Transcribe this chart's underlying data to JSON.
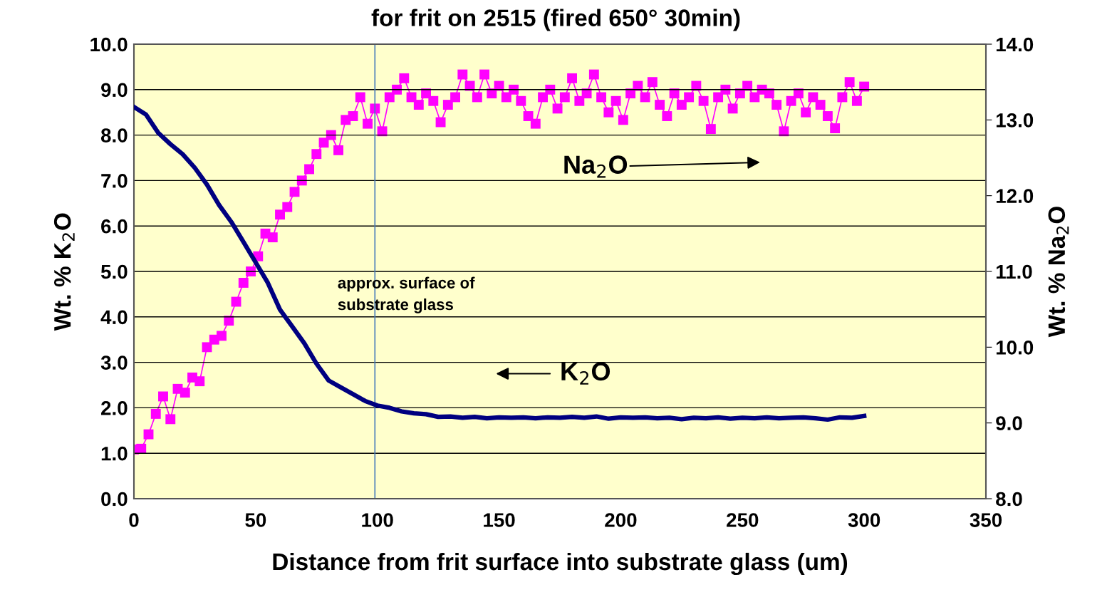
{
  "chart_data": {
    "type": "line",
    "title": "for frit on 2515 (fired 650° 30min)",
    "xlabel": "Distance from frit surface into substrate glass (um)",
    "ylabel": "Wt. % K$_{2}$O",
    "y2label": "Wt. % Na$_{2}$O",
    "xlim": [
      0,
      350
    ],
    "xticks": [
      0,
      50,
      100,
      150,
      200,
      250,
      300,
      350
    ],
    "ylim": [
      0,
      10
    ],
    "yticks": [
      {
        "value": 0,
        "label": "0.0"
      },
      {
        "value": 1,
        "label": "1.0"
      },
      {
        "value": 2,
        "label": "2.0"
      },
      {
        "value": 3,
        "label": "3.0"
      },
      {
        "value": 4,
        "label": "4.0"
      },
      {
        "value": 5,
        "label": "5.0"
      },
      {
        "value": 6,
        "label": "6.0"
      },
      {
        "value": 7,
        "label": "7.0"
      },
      {
        "value": 8,
        "label": "8.0"
      },
      {
        "value": 9,
        "label": "9.0"
      },
      {
        "value": 10,
        "label": "10.0"
      }
    ],
    "y2lim": [
      8,
      14
    ],
    "y2ticks": [
      {
        "value": 8,
        "label": "8.0"
      },
      {
        "value": 9,
        "label": "9.0"
      },
      {
        "value": 10,
        "label": "10.0"
      },
      {
        "value": 11,
        "label": "11.0"
      },
      {
        "value": 12,
        "label": "12.0"
      },
      {
        "value": 13,
        "label": "13.0"
      },
      {
        "value": 14,
        "label": "14.0"
      }
    ],
    "grid": "y",
    "legend": false,
    "ref_lines": [
      {
        "axis": "x",
        "value": 99,
        "color": "#4a7ebb"
      }
    ],
    "annotations": [
      "approx. surface of\nsubstrate glass"
    ],
    "series": [
      {
        "name": "K$_{2}$O",
        "color": "#000080",
        "marker": "none",
        "x": [
          0,
          5,
          10,
          15,
          20,
          25,
          30,
          35,
          40,
          45,
          50,
          55,
          60,
          65,
          70,
          75,
          80,
          85,
          90,
          95,
          100,
          105,
          110,
          115,
          120,
          125,
          130,
          135,
          140,
          145,
          150,
          155,
          160,
          165,
          170,
          175,
          180,
          185,
          190,
          195,
          200,
          205,
          210,
          215,
          220,
          225,
          230,
          235,
          240,
          245,
          250,
          255,
          260,
          265,
          270,
          275,
          280,
          285,
          290,
          295,
          300
        ],
        "values": [
          8.62,
          8.45,
          8.05,
          7.8,
          7.58,
          7.28,
          6.91,
          6.46,
          6.09,
          5.65,
          5.2,
          4.75,
          4.16,
          3.79,
          3.42,
          2.97,
          2.6,
          2.45,
          2.3,
          2.15,
          2.05,
          2.0,
          1.92,
          1.88,
          1.86,
          1.8,
          1.81,
          1.78,
          1.8,
          1.77,
          1.79,
          1.78,
          1.79,
          1.77,
          1.79,
          1.78,
          1.8,
          1.78,
          1.81,
          1.76,
          1.79,
          1.78,
          1.79,
          1.77,
          1.78,
          1.75,
          1.78,
          1.77,
          1.79,
          1.76,
          1.78,
          1.77,
          1.79,
          1.77,
          1.78,
          1.79,
          1.77,
          1.74,
          1.79,
          1.78,
          1.82
        ]
      },
      {
        "name": "Na$_{2}$O",
        "color": "#ff00ff",
        "marker": "square",
        "axis": "y2",
        "x": [
          0,
          3,
          6,
          9,
          12,
          15,
          18,
          21,
          24,
          27,
          30,
          33,
          36,
          39,
          42,
          45,
          48,
          51,
          54,
          57,
          60,
          63,
          66,
          69,
          72,
          75,
          78,
          81,
          84,
          87,
          90,
          93,
          96,
          99,
          102,
          105,
          108,
          111,
          114,
          117,
          120,
          123,
          126,
          129,
          132,
          135,
          138,
          141,
          144,
          147,
          150,
          153,
          156,
          159,
          162,
          165,
          168,
          171,
          174,
          177,
          180,
          183,
          186,
          189,
          192,
          195,
          198,
          201,
          204,
          207,
          210,
          213,
          216,
          219,
          222,
          225,
          228,
          231,
          234,
          237,
          240,
          243,
          246,
          249,
          252,
          255,
          258,
          261,
          264,
          267,
          270,
          273,
          276,
          279,
          282,
          285,
          288,
          291,
          294,
          297,
          300
        ],
        "values": [
          8.65,
          8.66,
          8.85,
          9.12,
          9.35,
          9.05,
          9.45,
          9.4,
          9.6,
          9.55,
          10.0,
          10.1,
          10.15,
          10.35,
          10.6,
          10.85,
          11.0,
          11.2,
          11.5,
          11.45,
          11.75,
          11.85,
          12.05,
          12.2,
          12.35,
          12.55,
          12.7,
          12.8,
          12.6,
          13.0,
          13.05,
          13.3,
          12.95,
          13.15,
          12.85,
          13.3,
          13.4,
          13.55,
          13.3,
          13.2,
          13.35,
          13.25,
          12.97,
          13.2,
          13.3,
          13.6,
          13.45,
          13.3,
          13.6,
          13.35,
          13.45,
          13.3,
          13.4,
          13.25,
          13.05,
          12.95,
          13.3,
          13.4,
          13.15,
          13.3,
          13.55,
          13.25,
          13.35,
          13.6,
          13.3,
          13.1,
          13.25,
          13.0,
          13.35,
          13.45,
          13.3,
          13.5,
          13.2,
          13.05,
          13.35,
          13.2,
          13.3,
          13.45,
          13.25,
          12.88,
          13.3,
          13.4,
          13.15,
          13.35,
          13.45,
          13.3,
          13.4,
          13.35,
          13.2,
          12.85,
          13.25,
          13.35,
          13.1,
          13.3,
          13.2,
          13.05,
          12.89,
          13.3,
          13.5,
          13.25,
          13.44
        ]
      }
    ]
  }
}
